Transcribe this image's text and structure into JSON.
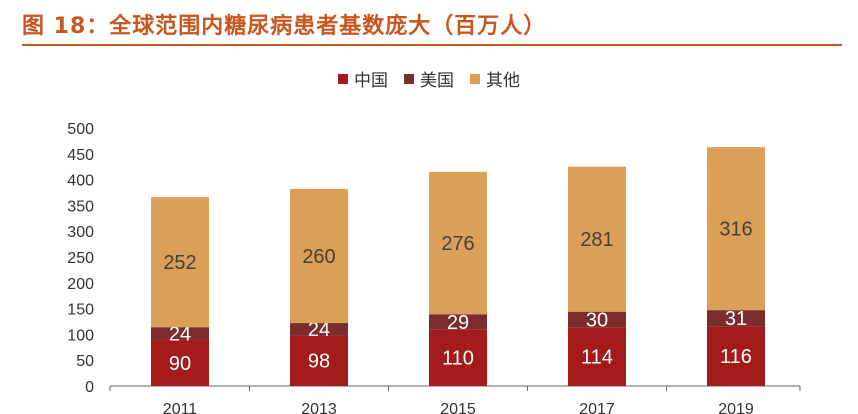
{
  "header": {
    "title": "图 18：全球范围内糖尿病患者基数庞大（百万人）"
  },
  "colors": {
    "china": "#a31b1b",
    "usa": "#7b2c2c",
    "other": "#dc9f58",
    "accent": "#c8561f"
  },
  "chart_data": {
    "type": "bar",
    "stacked": true,
    "categories": [
      "2011",
      "2013",
      "2015",
      "2017",
      "2019"
    ],
    "series": [
      {
        "name": "中国",
        "values": [
          90,
          98,
          110,
          114,
          116
        ]
      },
      {
        "name": "美国",
        "values": [
          24,
          24,
          29,
          30,
          31
        ]
      },
      {
        "name": "其他",
        "values": [
          252,
          260,
          276,
          281,
          316
        ]
      }
    ],
    "yticks": [
      "0",
      "50",
      "100",
      "150",
      "200",
      "250",
      "300",
      "350",
      "400",
      "450",
      "500"
    ],
    "ylim": [
      0,
      500
    ],
    "grid": false,
    "legend_position": "top-center"
  }
}
